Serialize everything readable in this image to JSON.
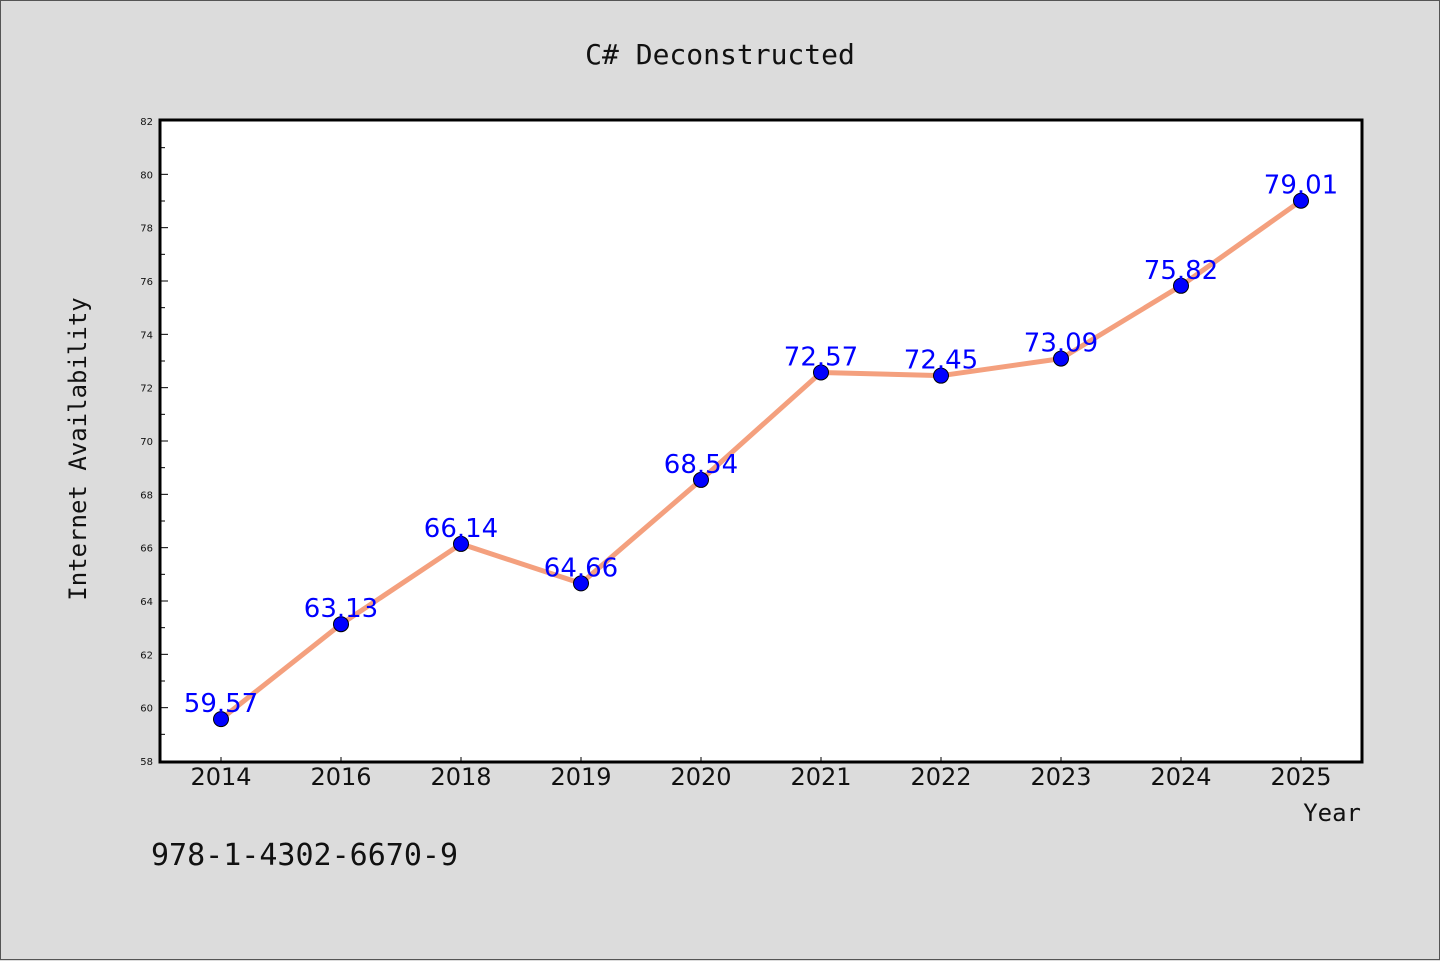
{
  "chart_data": {
    "type": "line",
    "title": "C# Deconstructed",
    "xlabel": "Year",
    "ylabel": "Internet Availability",
    "categories": [
      "2014",
      "2016",
      "2018",
      "2019",
      "2020",
      "2021",
      "2022",
      "2023",
      "2024",
      "2025"
    ],
    "series": [
      {
        "values": [
          59.57,
          63.13,
          66.14,
          64.66,
          68.54,
          72.57,
          72.45,
          73.09,
          75.82,
          79.01
        ],
        "labels": [
          "59.57",
          "63.13",
          "66.14",
          "64.66",
          "68.54",
          "72.57",
          "72.45",
          "73.09",
          "75.82",
          "79.01"
        ],
        "line_color": "#f4a07e",
        "marker_color": "#0000ff"
      }
    ],
    "ylim": [
      58,
      82
    ],
    "yticks": [
      "58",
      "60",
      "62",
      "64",
      "66",
      "68",
      "70",
      "72",
      "74",
      "76",
      "78",
      "80",
      "82"
    ],
    "grid": false,
    "legend": "none"
  },
  "footer": {
    "isbn": "978-1-4302-6670-9"
  }
}
